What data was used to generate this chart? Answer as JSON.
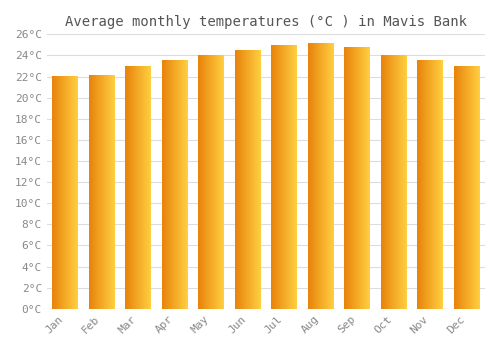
{
  "title": "Average monthly temperatures (°C ) in Mavis Bank",
  "months": [
    "Jan",
    "Feb",
    "Mar",
    "Apr",
    "May",
    "Jun",
    "Jul",
    "Aug",
    "Sep",
    "Oct",
    "Nov",
    "Dec"
  ],
  "values": [
    22.0,
    22.1,
    23.0,
    23.5,
    24.0,
    24.5,
    25.0,
    25.2,
    24.8,
    24.0,
    23.5,
    23.0
  ],
  "bar_color_left": "#E8820C",
  "bar_color_right": "#FFD040",
  "ylim": [
    0,
    26
  ],
  "ytick_step": 2,
  "background_color": "#ffffff",
  "grid_color": "#dddddd",
  "title_fontsize": 10,
  "tick_fontsize": 8,
  "font_family": "monospace"
}
